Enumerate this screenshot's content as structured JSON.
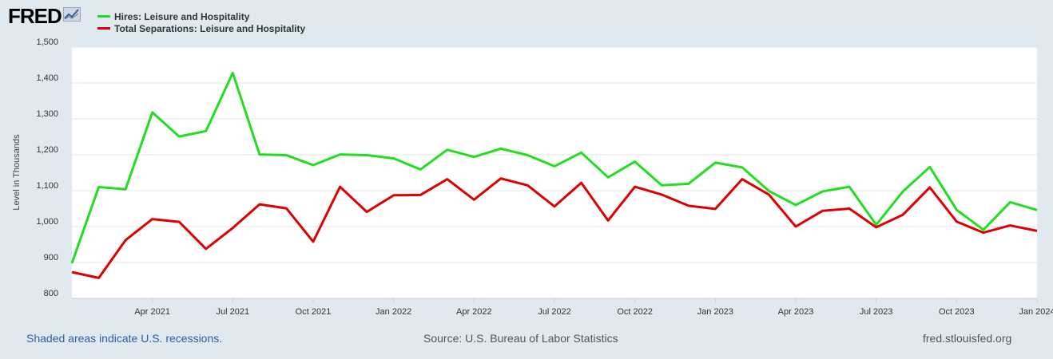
{
  "logo": {
    "text": "FRED",
    "icon": "chart-line-icon"
  },
  "legend": [
    {
      "label": "Hires: Leisure and Hospitality",
      "color": "#22dd22"
    },
    {
      "label": "Total Separations: Leisure and Hospitality",
      "color": "#dd0000"
    }
  ],
  "footer": {
    "recession_note": "Shaded areas indicate U.S. recessions.",
    "source": "Source: U.S. Bureau of Labor Statistics",
    "site": "fred.stlouisfed.org"
  },
  "chart_data": {
    "type": "line",
    "title": "",
    "xlabel": "",
    "ylabel": "Level in Thousands",
    "ylim": [
      800,
      1500
    ],
    "yticks": [
      800,
      900,
      1000,
      1100,
      1200,
      1300,
      1400,
      1500
    ],
    "ytick_labels": [
      "800",
      "900",
      "1,000",
      "1,100",
      "1,200",
      "1,300",
      "1,400",
      "1,500"
    ],
    "x_start": "Jan 2021",
    "x_end": "Jan 2024",
    "xticks": [
      {
        "label": "Apr 2021",
        "index": 3
      },
      {
        "label": "Jul 2021",
        "index": 6
      },
      {
        "label": "Oct 2021",
        "index": 9
      },
      {
        "label": "Jan 2022",
        "index": 12
      },
      {
        "label": "Apr 2022",
        "index": 15
      },
      {
        "label": "Jul 2022",
        "index": 18
      },
      {
        "label": "Oct 2022",
        "index": 21
      },
      {
        "label": "Jan 2023",
        "index": 24
      },
      {
        "label": "Apr 2023",
        "index": 27
      },
      {
        "label": "Jul 2023",
        "index": 30
      },
      {
        "label": "Oct 2023",
        "index": 33
      },
      {
        "label": "Jan 2024",
        "index": 36
      }
    ],
    "grid": true,
    "series": [
      {
        "name": "Hires: Leisure and Hospitality",
        "color": "#22dd22",
        "values": [
          898,
          1110,
          1104,
          1318,
          1251,
          1266,
          1428,
          1201,
          1199,
          1171,
          1201,
          1199,
          1190,
          1159,
          1214,
          1194,
          1217,
          1199,
          1168,
          1206,
          1137,
          1181,
          1115,
          1119,
          1178,
          1165,
          1099,
          1060,
          1098,
          1111,
          1005,
          1098,
          1166,
          1047,
          991,
          1068,
          1046
        ]
      },
      {
        "name": "Total Separations: Leisure and Hospitality",
        "color": "#dd0000",
        "values": [
          873,
          857,
          962,
          1021,
          1013,
          938,
          996,
          1062,
          1051,
          958,
          1111,
          1041,
          1087,
          1088,
          1132,
          1075,
          1134,
          1115,
          1056,
          1122,
          1017,
          1111,
          1089,
          1058,
          1049,
          1132,
          1089,
          1000,
          1044,
          1050,
          998,
          1033,
          1109,
          1014,
          983,
          1003,
          988
        ]
      }
    ]
  }
}
